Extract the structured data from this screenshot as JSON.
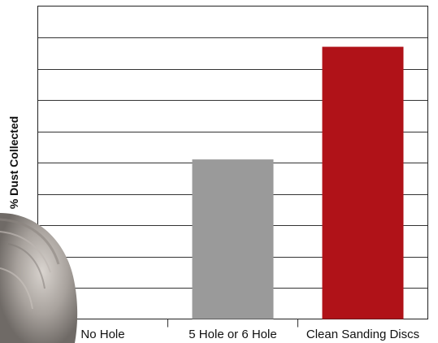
{
  "chart_data": {
    "type": "bar",
    "categories": [
      "No Hole",
      "5 Hole or 6 Hole",
      "Clean Sanding Discs"
    ],
    "values": [
      0,
      51,
      87
    ],
    "ylabel": "% Dust Collected",
    "xlabel": "",
    "ylim": [
      0,
      100
    ],
    "grid": true,
    "colors": [
      "#9a9a9a",
      "#9a9a9a",
      "#b01218"
    ]
  }
}
